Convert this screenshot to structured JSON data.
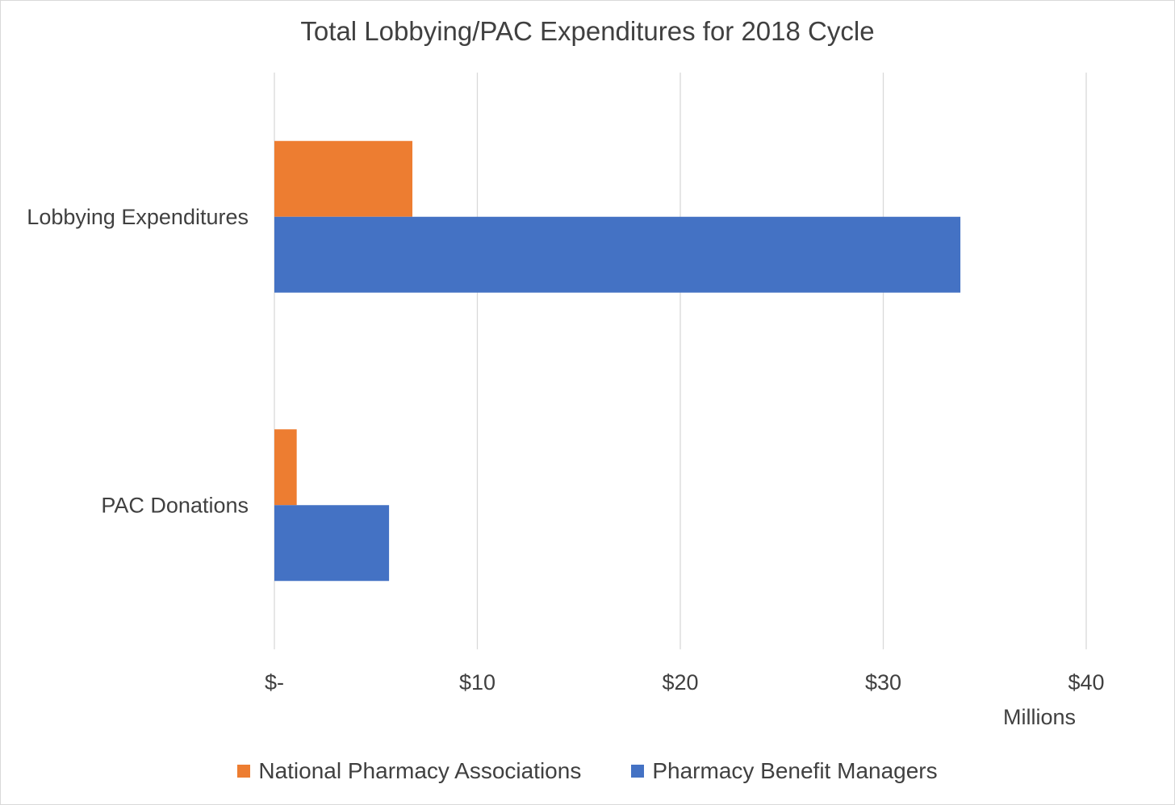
{
  "chart_data": {
    "type": "bar",
    "orientation": "horizontal",
    "title": "Total Lobbying/PAC Expenditures for 2018 Cycle",
    "categories": [
      "Lobbying Expenditures",
      "PAC Donations"
    ],
    "series": [
      {
        "name": "National Pharmacy Associations",
        "color": "#ED7D31",
        "values": [
          6.8,
          1.1
        ]
      },
      {
        "name": "Pharmacy Benefit Managers",
        "color": "#4472C4",
        "values": [
          33.8,
          5.65
        ]
      }
    ],
    "x_ticks": [
      {
        "value": 0,
        "label": "$-"
      },
      {
        "value": 10,
        "label": "$10"
      },
      {
        "value": 20,
        "label": "$20"
      },
      {
        "value": 30,
        "label": "$30"
      },
      {
        "value": 40,
        "label": "$40"
      }
    ],
    "x_units_label": "Millions",
    "xlim": [
      0,
      40
    ],
    "grid": true,
    "legend_position": "bottom"
  }
}
